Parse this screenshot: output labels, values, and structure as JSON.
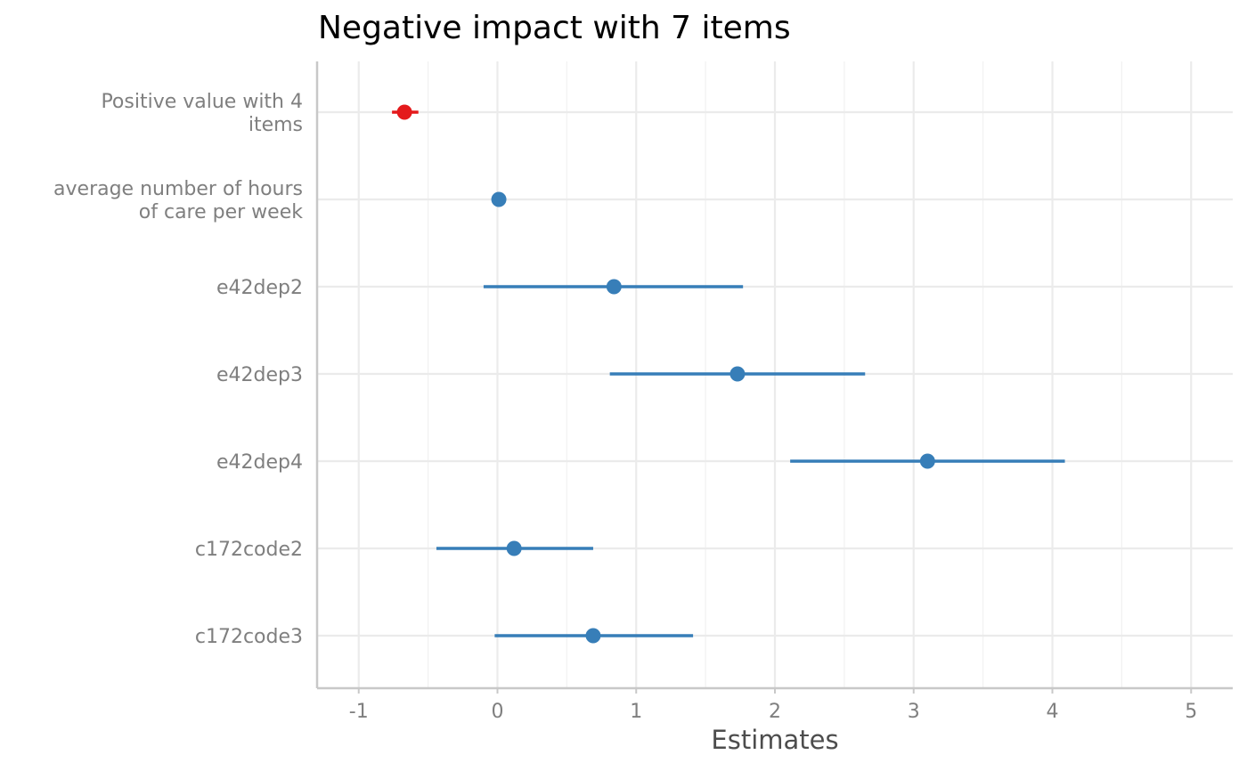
{
  "chart_data": {
    "type": "forest",
    "title": "Negative impact with 7 items",
    "xlabel": "Estimates",
    "ylabel": "",
    "xlim": [
      -1.3,
      5.3
    ],
    "x_ticks": [
      "-1",
      "0",
      "1",
      "2",
      "3",
      "4",
      "5"
    ],
    "x_tick_values": [
      -1,
      0,
      1,
      2,
      3,
      4,
      5
    ],
    "grid": true,
    "terms": [
      {
        "label": [
          "Positive value with 4",
          "items"
        ],
        "estimate": -0.67,
        "ci_low": -0.76,
        "ci_high": -0.57,
        "color": "#e41a1c"
      },
      {
        "label": [
          "average number of hours",
          "of care per week"
        ],
        "estimate": 0.01,
        "ci_low": 0.0,
        "ci_high": 0.02,
        "color": "#377eb8"
      },
      {
        "label": [
          "e42dep2"
        ],
        "estimate": 0.84,
        "ci_low": -0.1,
        "ci_high": 1.77,
        "color": "#377eb8"
      },
      {
        "label": [
          "e42dep3"
        ],
        "estimate": 1.73,
        "ci_low": 0.81,
        "ci_high": 2.65,
        "color": "#377eb8"
      },
      {
        "label": [
          "e42dep4"
        ],
        "estimate": 3.1,
        "ci_low": 2.11,
        "ci_high": 4.09,
        "color": "#377eb8"
      },
      {
        "label": [
          "c172code2"
        ],
        "estimate": 0.12,
        "ci_low": -0.44,
        "ci_high": 0.69,
        "color": "#377eb8"
      },
      {
        "label": [
          "c172code3"
        ],
        "estimate": 0.69,
        "ci_low": -0.02,
        "ci_high": 1.41,
        "color": "#377eb8"
      }
    ]
  }
}
